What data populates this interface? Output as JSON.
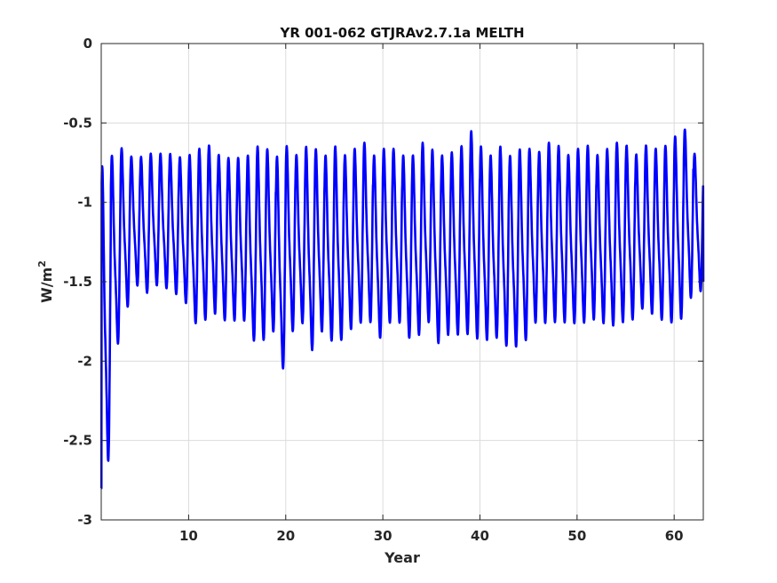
{
  "chart_data": {
    "type": "line",
    "title": "YR 001-062 GTJRAv2.7.1a MELTH",
    "xlabel": "Year",
    "ylabel": "W/m",
    "ylabel_superscript": "2",
    "xlim": [
      1,
      63
    ],
    "ylim": [
      -3,
      0
    ],
    "xticks": [
      10,
      20,
      30,
      40,
      50,
      60
    ],
    "yticks": [
      0,
      -0.5,
      -1,
      -1.5,
      -2,
      -2.5,
      -3
    ],
    "ytick_labels": [
      "0",
      "-0.5",
      "-1",
      "-1.5",
      "-2",
      "-2.5",
      "-3"
    ],
    "grid": true,
    "series": [
      {
        "color": "#0000ff",
        "description_of_cycle": "seasonal oscillation, one max and one min per year",
        "years": [
          1,
          2,
          3,
          4,
          5,
          6,
          7,
          8,
          9,
          10,
          11,
          12,
          13,
          14,
          15,
          16,
          17,
          18,
          19,
          20,
          21,
          22,
          23,
          24,
          25,
          26,
          27,
          28,
          29,
          30,
          31,
          32,
          33,
          34,
          35,
          36,
          37,
          38,
          39,
          40,
          41,
          42,
          43,
          44,
          45,
          46,
          47,
          48,
          49,
          50,
          51,
          52,
          53,
          54,
          55,
          56,
          57,
          58,
          59,
          60,
          61,
          62
        ],
        "annual_max": [
          -0.7,
          -0.66,
          -0.62,
          -0.68,
          -0.68,
          -0.66,
          -0.66,
          -0.66,
          -0.68,
          -0.66,
          -0.62,
          -0.6,
          -0.66,
          -0.68,
          -0.68,
          -0.66,
          -0.6,
          -0.62,
          -0.66,
          -0.6,
          -0.66,
          -0.6,
          -0.62,
          -0.66,
          -0.6,
          -0.66,
          -0.62,
          -0.58,
          -0.66,
          -0.62,
          -0.62,
          -0.66,
          -0.66,
          -0.58,
          -0.62,
          -0.66,
          -0.64,
          -0.6,
          -0.5,
          -0.6,
          -0.66,
          -0.6,
          -0.66,
          -0.62,
          -0.62,
          -0.64,
          -0.58,
          -0.6,
          -0.66,
          -0.62,
          -0.6,
          -0.66,
          -0.62,
          -0.58,
          -0.6,
          -0.66,
          -0.6,
          -0.62,
          -0.6,
          -0.54,
          -0.5,
          -0.66
        ],
        "annual_min": [
          -2.8,
          -2.0,
          -1.75,
          -1.6,
          -1.65,
          -1.6,
          -1.62,
          -1.66,
          -1.72,
          -1.86,
          -1.84,
          -1.8,
          -1.84,
          -1.84,
          -1.84,
          -1.98,
          -1.98,
          -1.92,
          -2.17,
          -1.92,
          -1.86,
          -2.05,
          -1.92,
          -1.98,
          -1.98,
          -1.9,
          -1.86,
          -1.86,
          -1.96,
          -1.86,
          -1.86,
          -1.96,
          -1.94,
          -1.86,
          -2.0,
          -1.94,
          -1.94,
          -1.94,
          -1.98,
          -1.98,
          -1.96,
          -2.02,
          -2.02,
          -1.98,
          -1.86,
          -1.86,
          -1.86,
          -1.86,
          -1.86,
          -1.86,
          -1.84,
          -1.86,
          -1.88,
          -1.86,
          -1.84,
          -1.76,
          -1.8,
          -1.84,
          -1.86,
          -1.84,
          -1.7,
          -1.64
        ]
      }
    ]
  }
}
